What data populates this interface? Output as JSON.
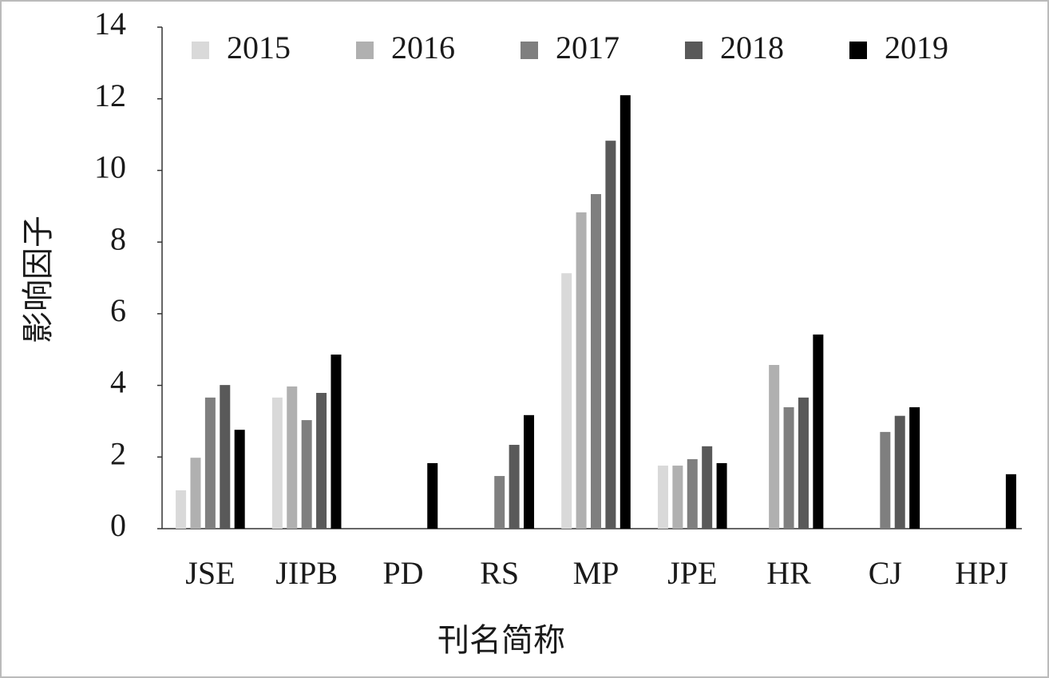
{
  "chart_data": {
    "type": "bar",
    "x_label": "刊名简称",
    "y_label": "影响因子",
    "categories": [
      "JSE",
      "JIPB",
      "PD",
      "RS",
      "MP",
      "JPE",
      "HR",
      "CJ",
      "HPJ"
    ],
    "series": [
      {
        "name": "2015",
        "color": "#d9d9d9",
        "values": [
          1.07,
          3.66,
          null,
          null,
          7.13,
          1.76,
          null,
          null,
          null
        ]
      },
      {
        "name": "2016",
        "color": "#b0b0b0",
        "values": [
          1.98,
          3.97,
          null,
          null,
          8.83,
          1.76,
          4.57,
          null,
          null
        ]
      },
      {
        "name": "2017",
        "color": "#7f7f7f",
        "values": [
          3.66,
          3.03,
          null,
          1.47,
          9.34,
          1.94,
          3.39,
          2.7,
          null
        ]
      },
      {
        "name": "2018",
        "color": "#595959",
        "values": [
          4.01,
          3.79,
          null,
          2.34,
          10.83,
          2.3,
          3.66,
          3.15,
          null
        ]
      },
      {
        "name": "2019",
        "color": "#000000",
        "values": [
          2.76,
          4.86,
          1.83,
          3.17,
          12.1,
          1.83,
          5.42,
          3.39,
          1.52
        ]
      }
    ],
    "ylim": [
      0,
      14
    ],
    "yticks": [
      0,
      2,
      4,
      6,
      8,
      10,
      12,
      14
    ],
    "legend": "top"
  }
}
